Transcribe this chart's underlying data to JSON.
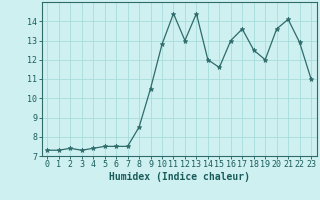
{
  "x": [
    0,
    1,
    2,
    3,
    4,
    5,
    6,
    7,
    8,
    9,
    10,
    11,
    12,
    13,
    14,
    15,
    16,
    17,
    18,
    19,
    20,
    21,
    22,
    23
  ],
  "y": [
    7.3,
    7.3,
    7.4,
    7.3,
    7.4,
    7.5,
    7.5,
    7.5,
    8.5,
    10.5,
    12.8,
    14.4,
    13.0,
    14.4,
    12.0,
    11.6,
    13.0,
    13.6,
    12.5,
    12.0,
    13.6,
    14.1,
    12.9,
    11.0
  ],
  "line_color": "#2e6b6b",
  "marker": "*",
  "marker_size": 3.5,
  "bg_color": "#cff0f0",
  "grid_color": "#a8dcdc",
  "xlabel": "Humidex (Indice chaleur)",
  "ylim": [
    7,
    15
  ],
  "xlim": [
    -0.5,
    23.5
  ],
  "yticks": [
    7,
    8,
    9,
    10,
    11,
    12,
    13,
    14
  ],
  "xticks": [
    0,
    1,
    2,
    3,
    4,
    5,
    6,
    7,
    8,
    9,
    10,
    11,
    12,
    13,
    14,
    15,
    16,
    17,
    18,
    19,
    20,
    21,
    22,
    23
  ],
  "xlabel_fontsize": 7,
  "tick_fontsize": 6,
  "axis_color": "#1a5c5c",
  "spine_color": "#2e6b6b"
}
